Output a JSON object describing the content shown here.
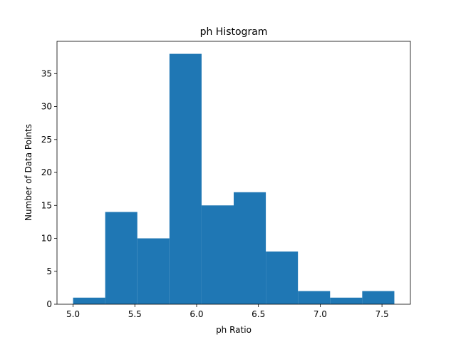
{
  "chart_data": {
    "type": "bar",
    "title": "ph Histogram",
    "xlabel": "ph Ratio",
    "ylabel": "Number of Data Points",
    "bin_edges": [
      5.0,
      5.26,
      5.52,
      5.78,
      6.04,
      6.3,
      6.56,
      6.82,
      7.08,
      7.34,
      7.6
    ],
    "values": [
      1,
      14,
      10,
      38,
      15,
      17,
      8,
      2,
      1,
      2
    ],
    "xlim": [
      4.87,
      7.73
    ],
    "ylim": [
      0,
      39.9
    ],
    "xticks": [
      5.0,
      5.5,
      6.0,
      6.5,
      7.0,
      7.5
    ],
    "xtick_labels": [
      "5.0",
      "5.5",
      "6.0",
      "6.5",
      "7.0",
      "7.5"
    ],
    "yticks": [
      0,
      5,
      10,
      15,
      20,
      25,
      30,
      35
    ],
    "ytick_labels": [
      "0",
      "5",
      "10",
      "15",
      "20",
      "25",
      "30",
      "35"
    ],
    "bar_color": "#1f77b4",
    "grid": false,
    "legend": "none"
  }
}
